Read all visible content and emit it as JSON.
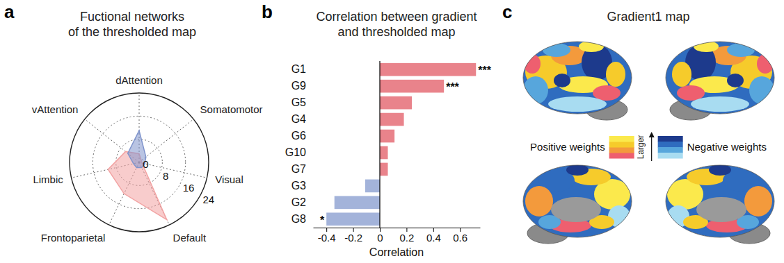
{
  "chart_data": [
    {
      "panel_label": "a",
      "type": "radar",
      "title": [
        "Fuctional networks",
        "of the thresholded map"
      ],
      "categories": [
        "dAttention",
        "Somatomotor",
        "Visual",
        "Default",
        "Frontoparietal",
        "Limbic",
        "vAttention"
      ],
      "series": [
        {
          "color": "#f2a3a3",
          "values": [
            3,
            1,
            1,
            22,
            12,
            11,
            6
          ]
        },
        {
          "color": "#7f94cc",
          "values": [
            11,
            3,
            2,
            2,
            2,
            2,
            5
          ]
        }
      ],
      "ylim": [
        0,
        24
      ],
      "yticks": [
        0,
        8,
        16,
        24
      ],
      "grid": true
    },
    {
      "panel_label": "b",
      "type": "bar",
      "orientation": "horizontal",
      "title": [
        "Correlation between gradient",
        "and thresholded map"
      ],
      "categories": [
        "G1",
        "G9",
        "G5",
        "G4",
        "G6",
        "G10",
        "G7",
        "G3",
        "G2",
        "G8"
      ],
      "values": [
        0.72,
        0.48,
        0.24,
        0.18,
        0.11,
        0.06,
        0.06,
        -0.11,
        -0.34,
        -0.4
      ],
      "colors": [
        "#e9838b",
        "#e9838b",
        "#e9838b",
        "#e9838b",
        "#e9838b",
        "#e9838b",
        "#e9838b",
        "#a3b3da",
        "#a3b3da",
        "#a3b3da"
      ],
      "annotations": [
        "***",
        "***",
        null,
        null,
        null,
        null,
        null,
        null,
        null,
        "*"
      ],
      "xlabel": "Correlation",
      "xlim": [
        -0.5,
        0.75
      ],
      "xticks": [
        -0.4,
        -0.2,
        0,
        0.2,
        0.4,
        0.6
      ]
    }
  ],
  "brain_map": {
    "panel_label": "c",
    "title": "Gradient1 map",
    "positive_label": "Positive weights",
    "negative_label": "Negative weights",
    "scale_label": "Larger",
    "positive_colors": [
      "#ee5f6f",
      "#f39a3c",
      "#f6cb2b",
      "#fbe94c"
    ],
    "negative_colors": [
      "#1d3a8c",
      "#2f6cbf",
      "#57a6dc",
      "#a8dcf1"
    ]
  }
}
